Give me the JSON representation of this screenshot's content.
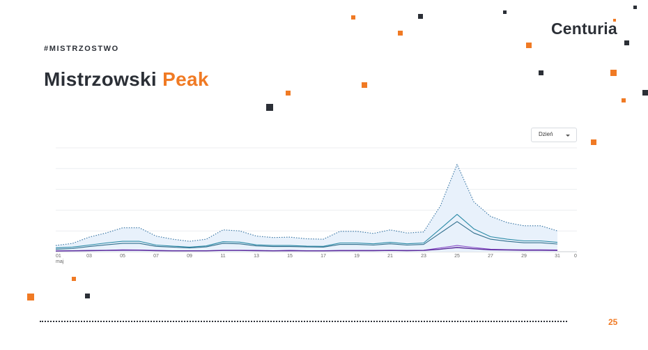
{
  "header": {
    "hashtag": "#MISTRZOSTWO",
    "title_main": "Mistrzowski",
    "title_accent": "Peak"
  },
  "brand": {
    "logo": "Centuria"
  },
  "controls": {
    "period_select": "Dzień"
  },
  "footer": {
    "page_number": "25"
  },
  "colors": {
    "accent": "#f07a24",
    "dark": "#2b2f36",
    "series_band_fill": "#e8f1fb",
    "series_dotted": "#2f6f9f",
    "series_teal": "#2a8aa6",
    "series_dark_teal": "#2f6e8c",
    "series_purple": "#8a4fc9",
    "series_violet": "#5b2a9a"
  },
  "chart_data": {
    "type": "line",
    "x": [
      1,
      2,
      3,
      4,
      5,
      6,
      7,
      8,
      9,
      10,
      11,
      12,
      13,
      14,
      15,
      16,
      17,
      18,
      19,
      20,
      21,
      22,
      23,
      24,
      25,
      26,
      27,
      28,
      29,
      30,
      31
    ],
    "x_tick_labels": [
      "01",
      "03",
      "05",
      "07",
      "09",
      "11",
      "13",
      "15",
      "17",
      "19",
      "21",
      "23",
      "25",
      "27",
      "29",
      "31"
    ],
    "x_sub_label": "maj",
    "y_tick_labels": [
      "0"
    ],
    "ylim": [
      0,
      5
    ],
    "grid": true,
    "series": [
      {
        "style": "dotted-upper-band",
        "values": [
          0.3,
          0.4,
          0.7,
          0.9,
          1.15,
          1.15,
          0.75,
          0.6,
          0.5,
          0.6,
          1.05,
          1.0,
          0.75,
          0.68,
          0.7,
          0.62,
          0.6,
          0.98,
          0.98,
          0.88,
          1.05,
          0.9,
          0.95,
          2.2,
          4.2,
          2.4,
          1.7,
          1.4,
          1.25,
          1.25,
          1.0
        ]
      },
      {
        "style": "teal",
        "values": [
          0.18,
          0.22,
          0.32,
          0.42,
          0.5,
          0.5,
          0.32,
          0.27,
          0.22,
          0.28,
          0.48,
          0.46,
          0.33,
          0.3,
          0.3,
          0.27,
          0.26,
          0.42,
          0.42,
          0.38,
          0.45,
          0.38,
          0.42,
          1.1,
          1.8,
          1.1,
          0.72,
          0.6,
          0.52,
          0.52,
          0.45
        ]
      },
      {
        "style": "dark-teal",
        "values": [
          0.12,
          0.15,
          0.25,
          0.33,
          0.4,
          0.4,
          0.26,
          0.22,
          0.18,
          0.23,
          0.4,
          0.38,
          0.28,
          0.25,
          0.25,
          0.23,
          0.22,
          0.35,
          0.35,
          0.32,
          0.38,
          0.32,
          0.35,
          0.9,
          1.45,
          0.9,
          0.6,
          0.5,
          0.43,
          0.43,
          0.37
        ]
      },
      {
        "style": "purple",
        "values": [
          0.04,
          0.05,
          0.06,
          0.07,
          0.09,
          0.08,
          0.06,
          0.05,
          0.05,
          0.05,
          0.07,
          0.07,
          0.06,
          0.05,
          0.06,
          0.05,
          0.05,
          0.06,
          0.06,
          0.06,
          0.07,
          0.06,
          0.07,
          0.18,
          0.3,
          0.2,
          0.12,
          0.1,
          0.09,
          0.09,
          0.08
        ]
      },
      {
        "style": "violet",
        "values": [
          0.03,
          0.04,
          0.05,
          0.06,
          0.07,
          0.07,
          0.05,
          0.04,
          0.04,
          0.04,
          0.06,
          0.06,
          0.05,
          0.04,
          0.05,
          0.04,
          0.04,
          0.05,
          0.05,
          0.05,
          0.06,
          0.05,
          0.06,
          0.12,
          0.2,
          0.14,
          0.09,
          0.08,
          0.07,
          0.07,
          0.06
        ]
      }
    ]
  }
}
